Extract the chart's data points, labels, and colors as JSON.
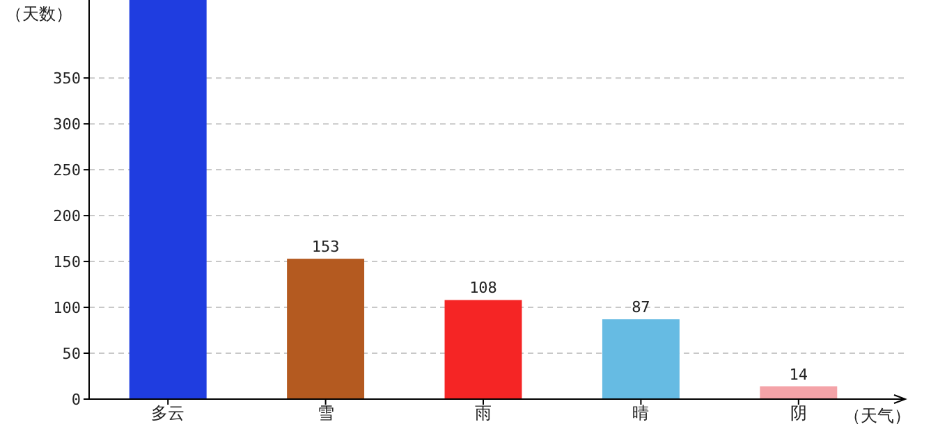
{
  "chart_data": {
    "type": "bar",
    "ylabel": "（天数）",
    "xlabel": "（天气）",
    "categories": [
      "多云",
      "雪",
      "雨",
      "晴",
      "阴"
    ],
    "values": [
      435,
      153,
      108,
      87,
      14
    ],
    "value_labels": [
      null,
      "153",
      "108",
      "87",
      "14"
    ],
    "colors": [
      "#1f3de0",
      "#b45a20",
      "#f52525",
      "#66bbe3",
      "#f4a3a8"
    ],
    "ylim": [
      0,
      435
    ],
    "yticks": [
      0,
      50,
      100,
      150,
      200,
      250,
      300,
      350
    ],
    "grid": "y"
  }
}
